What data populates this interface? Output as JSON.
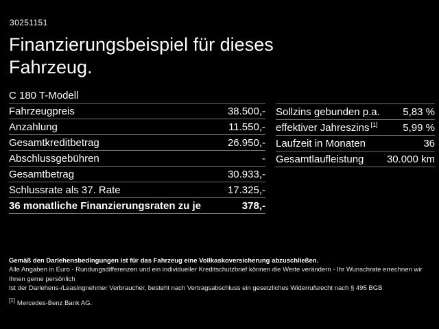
{
  "colors": {
    "background": "#000000",
    "text": "#ffffff",
    "divider": "#757575",
    "footer_text": "#e6e6e6"
  },
  "header": {
    "doc_number": "30251151",
    "title_line1": "Finanzierungsbeispiel für dieses",
    "title_line2": "Fahrzeug.",
    "model": "C 180 T-Modell"
  },
  "left_table": {
    "rows": [
      {
        "label": "Fahrzeugpreis",
        "value": "38.500,-"
      },
      {
        "label": "Anzahlung",
        "value": "11.550,-"
      },
      {
        "label": "Gesamtkreditbetrag",
        "value": "26.950,-"
      },
      {
        "label": "Abschlussgebühren",
        "value": "-"
      },
      {
        "label": "Gesamtbetrag",
        "value": "30.933,-"
      },
      {
        "label": "Schlussrate als 37. Rate",
        "value": "17.325,-"
      },
      {
        "label": "36 monatliche Finanzierungsraten zu je",
        "value": "378,-"
      }
    ]
  },
  "right_table": {
    "rows": [
      {
        "label": "Sollzins gebunden p.a.",
        "value": "5,83 %"
      },
      {
        "label": "effektiver Jahreszins",
        "sup": "[1]",
        "value": "5,99 %"
      },
      {
        "label": "Laufzeit in Monaten",
        "value": "36"
      },
      {
        "label": "Gesamtlaufleistung",
        "value": "30.000 km"
      }
    ]
  },
  "footer": {
    "line1": "Gemäß den Darlehensbedingungen ist für das Fahrzeug eine Vollkaskoversicherung abzuschließen.",
    "line2": "Alle Angaben in Euro - Rundungsdifferenzen und ein individueller Kreditschutzbrief können die Werte verändern - Ihr Wunschrate errechnen wir Ihnen gerne persönlich",
    "line3": "Ist der Darlehens-/Leasingnehmer Verbraucher, besteht nach Vertragsabschluss ein gesetzliches Widerrufsrecht nach § 495 BGB",
    "footnote_marker": "[1]",
    "footnote_text": "Mercedes-Benz Bank AG."
  }
}
